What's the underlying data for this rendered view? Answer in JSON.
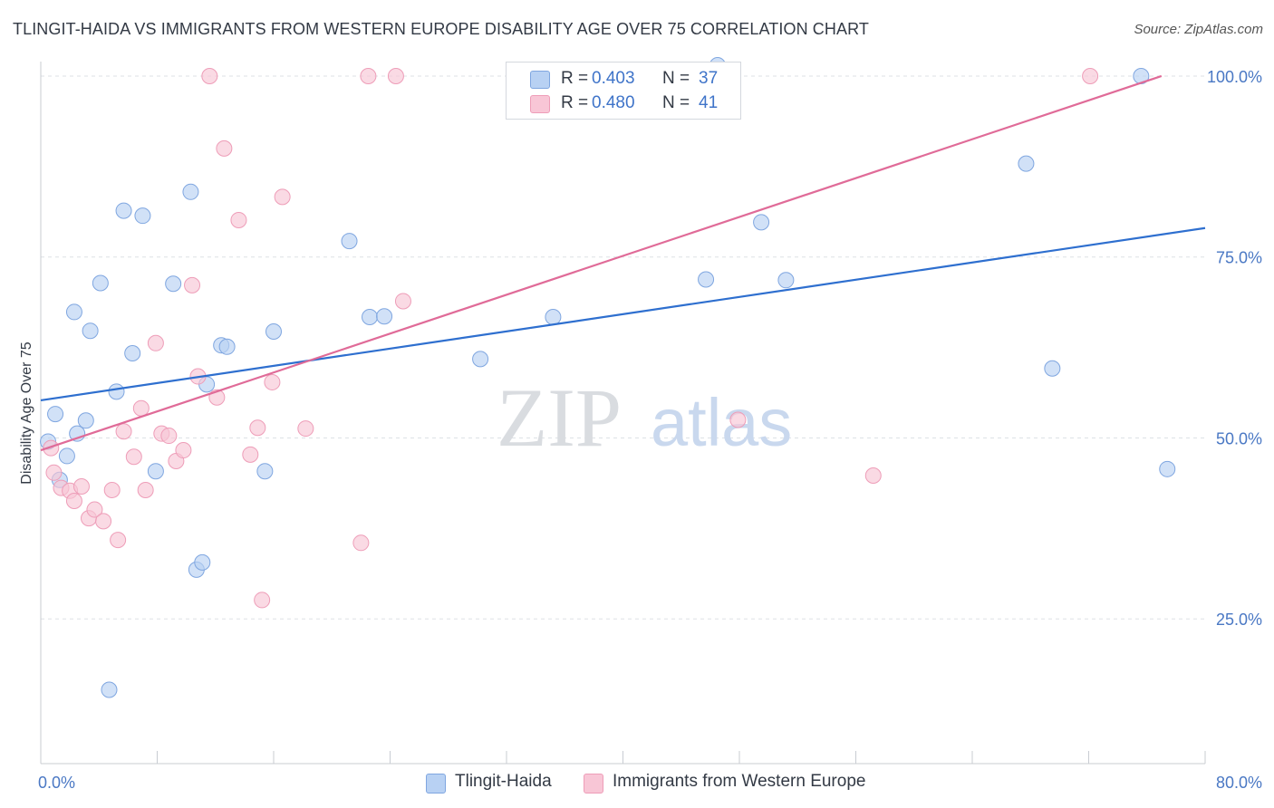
{
  "header": {
    "title": "TLINGIT-HAIDA VS IMMIGRANTS FROM WESTERN EUROPE DISABILITY AGE OVER 75 CORRELATION CHART",
    "source": "Source: ZipAtlas.com"
  },
  "legend": {
    "rows": [
      {
        "r_label": "R =",
        "r_value": "0.403",
        "n_label": "N =",
        "n_value": "37"
      },
      {
        "r_label": "R =",
        "r_value": "0.480",
        "n_label": "N =",
        "n_value": "41"
      }
    ]
  },
  "bottom_legend": {
    "items": [
      {
        "label": "Tlingit-Haida"
      },
      {
        "label": "Immigrants from Western Europe"
      }
    ]
  },
  "watermark": {
    "part1": "ZIP",
    "part2": "atlas"
  },
  "colors": {
    "series1_fill": "#b8d1f3",
    "series1_stroke": "#7fa6e0",
    "series1_line": "#2e6fcf",
    "series2_fill": "#f8c6d6",
    "series2_stroke": "#ee9db8",
    "series2_line": "#e06b98",
    "tick_label": "#4a78c4",
    "grid": "#dde1e6"
  },
  "chart_data": {
    "type": "scatter",
    "title": "TLINGIT-HAIDA VS IMMIGRANTS FROM WESTERN EUROPE DISABILITY AGE OVER 75 CORRELATION CHART",
    "xlabel": "",
    "ylabel": "Disability Age Over 75",
    "xlim": [
      0,
      80
    ],
    "ylim": [
      5,
      103
    ],
    "x_tick_labels": [
      {
        "value": 0,
        "label": "0.0%"
      },
      {
        "value": 80,
        "label": "80.0%"
      }
    ],
    "y_tick_labels": [
      {
        "value": 100,
        "label": "100.0%"
      },
      {
        "value": 75,
        "label": "75.0%"
      },
      {
        "value": 50,
        "label": "50.0%"
      },
      {
        "value": 25,
        "label": "25.0%"
      }
    ],
    "series": [
      {
        "name": "Tlingit-Haida",
        "r": 0.403,
        "n": 37,
        "trend": {
          "x": [
            0,
            80
          ],
          "y": [
            55.2,
            79.0
          ]
        },
        "points": [
          [
            0.5,
            49.5
          ],
          [
            1.0,
            53.3
          ],
          [
            1.3,
            44.2
          ],
          [
            1.8,
            47.5
          ],
          [
            2.3,
            67.4
          ],
          [
            2.5,
            50.6
          ],
          [
            3.1,
            52.4
          ],
          [
            3.4,
            64.8
          ],
          [
            4.1,
            71.4
          ],
          [
            4.7,
            15.2
          ],
          [
            5.2,
            56.4
          ],
          [
            5.7,
            81.4
          ],
          [
            6.3,
            61.7
          ],
          [
            7.0,
            80.7
          ],
          [
            7.9,
            45.4
          ],
          [
            9.1,
            71.3
          ],
          [
            10.3,
            84.0
          ],
          [
            10.7,
            31.8
          ],
          [
            11.1,
            32.8
          ],
          [
            11.4,
            57.4
          ],
          [
            12.4,
            62.8
          ],
          [
            12.8,
            62.6
          ],
          [
            15.4,
            45.4
          ],
          [
            16.0,
            64.7
          ],
          [
            21.2,
            77.2
          ],
          [
            22.6,
            66.7
          ],
          [
            23.6,
            66.8
          ],
          [
            30.2,
            60.9
          ],
          [
            35.2,
            66.7
          ],
          [
            45.7,
            71.9
          ],
          [
            49.5,
            79.8
          ],
          [
            51.2,
            71.8
          ],
          [
            67.7,
            87.9
          ],
          [
            69.5,
            59.6
          ],
          [
            75.6,
            100.0
          ],
          [
            77.4,
            45.7
          ],
          [
            46.5,
            101.5
          ]
        ]
      },
      {
        "name": "Immigrants from Western Europe",
        "r": 0.48,
        "n": 41,
        "trend": {
          "x": [
            0,
            77
          ],
          "y": [
            48.3,
            100.0
          ]
        },
        "points": [
          [
            0.7,
            48.6
          ],
          [
            0.9,
            45.2
          ],
          [
            1.4,
            43.1
          ],
          [
            2.0,
            42.7
          ],
          [
            2.3,
            41.3
          ],
          [
            2.8,
            43.3
          ],
          [
            3.3,
            38.9
          ],
          [
            3.7,
            40.1
          ],
          [
            4.3,
            38.5
          ],
          [
            4.9,
            42.8
          ],
          [
            5.3,
            35.9
          ],
          [
            5.7,
            50.9
          ],
          [
            6.4,
            47.4
          ],
          [
            6.9,
            54.1
          ],
          [
            7.2,
            42.8
          ],
          [
            7.9,
            63.1
          ],
          [
            8.3,
            50.6
          ],
          [
            8.8,
            50.3
          ],
          [
            9.3,
            46.8
          ],
          [
            9.8,
            48.3
          ],
          [
            10.4,
            71.1
          ],
          [
            10.8,
            58.5
          ],
          [
            11.6,
            100.0
          ],
          [
            12.1,
            55.6
          ],
          [
            12.6,
            90.0
          ],
          [
            13.6,
            80.1
          ],
          [
            14.4,
            47.7
          ],
          [
            14.9,
            51.4
          ],
          [
            15.2,
            27.6
          ],
          [
            15.9,
            57.7
          ],
          [
            16.6,
            83.3
          ],
          [
            18.2,
            51.3
          ],
          [
            22.0,
            35.5
          ],
          [
            22.5,
            100.0
          ],
          [
            24.4,
            100.0
          ],
          [
            24.9,
            68.9
          ],
          [
            33.0,
            100.0
          ],
          [
            41.3,
            100.0
          ],
          [
            47.9,
            52.5
          ],
          [
            57.2,
            44.8
          ],
          [
            72.1,
            100.0
          ]
        ]
      }
    ]
  }
}
